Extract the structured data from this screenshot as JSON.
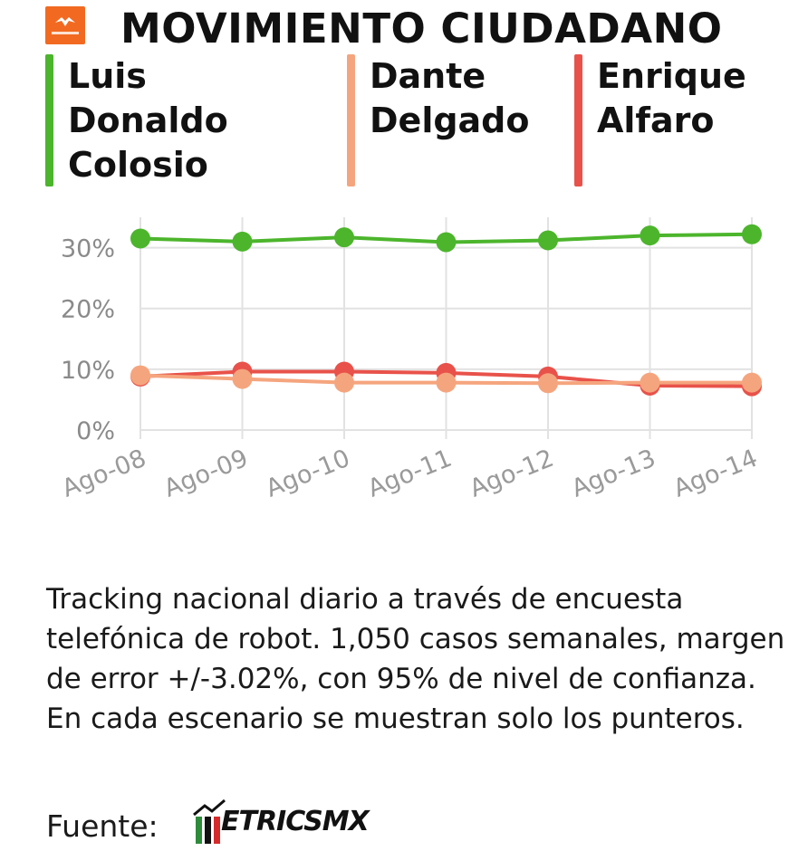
{
  "title": "MOVIMIENTO CIUDADANO",
  "logo": {
    "icon": "movimiento-ciudadano-logo",
    "color": "#f26a21"
  },
  "candidates": [
    {
      "name": "Luis\nDonaldo\nColosio",
      "color": "#4cb52c"
    },
    {
      "name": "Dante\nDelgado",
      "color": "#f5a57e"
    },
    {
      "name": "Enrique\nAlfaro",
      "color": "#e8524a"
    }
  ],
  "chart_data": {
    "type": "line",
    "x": [
      "Ago-08",
      "Ago-09",
      "Ago-10",
      "Ago-11",
      "Ago-12",
      "Ago-13",
      "Ago-14"
    ],
    "y_ticks": [
      "0%",
      "10%",
      "20%",
      "30%"
    ],
    "ylim": [
      0,
      35
    ],
    "grid": true,
    "series": [
      {
        "name": "Luis Donaldo Colosio",
        "color": "#4cb52c",
        "values": [
          31.5,
          31.0,
          31.7,
          30.9,
          31.2,
          32.0,
          32.2
        ]
      },
      {
        "name": "Enrique Alfaro",
        "color": "#e8524a",
        "values": [
          8.8,
          9.6,
          9.6,
          9.4,
          8.8,
          7.3,
          7.2
        ]
      },
      {
        "name": "Dante Delgado",
        "color": "#f5a57e",
        "values": [
          9.0,
          8.4,
          7.8,
          7.8,
          7.7,
          7.8,
          7.8
        ]
      }
    ]
  },
  "note": "Tracking nacional diario a través de encuesta telefónica de robot. 1,050 casos semanales, margen de error +/-3.02%, con 95% de nivel de confianza. En cada escenario se muestran solo los punteros.",
  "source": {
    "label": "Fuente:",
    "brand": "ETRICSMX"
  }
}
